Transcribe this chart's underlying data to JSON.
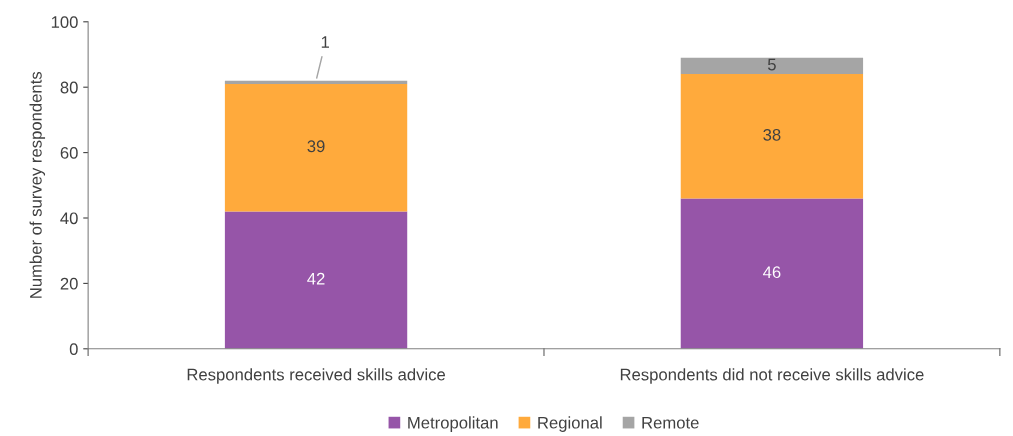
{
  "chart_data": {
    "type": "bar",
    "stacked": true,
    "ylabel": "Number of survey respondents",
    "categories": [
      "Respondents received skills advice",
      "Respondents did not receive skills advice"
    ],
    "series": [
      {
        "name": "Metropolitan",
        "color": "#9655a8",
        "values": [
          42,
          46
        ]
      },
      {
        "name": "Regional",
        "color": "#ffaa3c",
        "values": [
          39,
          38
        ]
      },
      {
        "name": "Remote",
        "color": "#a5a5a5",
        "values": [
          1,
          5
        ]
      }
    ],
    "ylim": [
      0,
      100
    ],
    "yticks": [
      0,
      20,
      40,
      60,
      80,
      100
    ],
    "grid": false,
    "legend": "bottom",
    "data_labels": true
  }
}
